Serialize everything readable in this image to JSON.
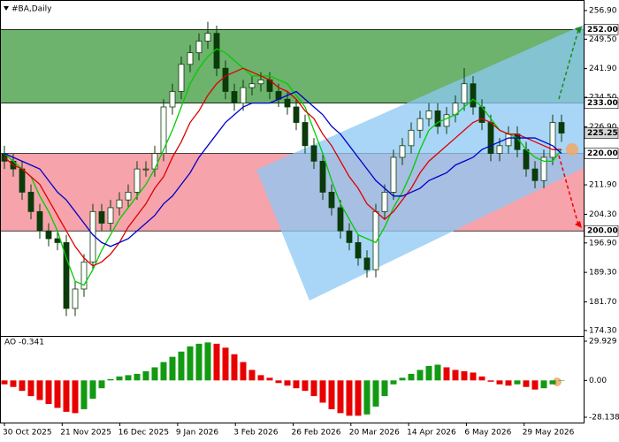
{
  "chart_data": [
    {
      "type": "candlestick",
      "title": "#BA,Daily",
      "x_labels": [
        "30 Oct 2025",
        "21 Nov 2025",
        "16 Dec 2025",
        "9 Jan 2026",
        "3 Feb 2026",
        "26 Feb 2026",
        "20 Mar 2026",
        "14 Apr 2026",
        "6 May 2026",
        "29 May 2026"
      ],
      "open": [
        220,
        218,
        216,
        210,
        205,
        200,
        198,
        197,
        180,
        185,
        192,
        205,
        202,
        206,
        208,
        210,
        216,
        216,
        220,
        232,
        236,
        243,
        246,
        249,
        251,
        242,
        236,
        233,
        237,
        238,
        239,
        236,
        234,
        232,
        228,
        222,
        218,
        210,
        206,
        200,
        197,
        193,
        190,
        205,
        210,
        219,
        222,
        226,
        229,
        231,
        227,
        230,
        233,
        238,
        232,
        228,
        220,
        222,
        225,
        221,
        216,
        213,
        219,
        228
      ],
      "high": [
        222,
        220,
        218,
        212,
        207,
        202,
        200,
        199,
        187,
        194,
        207,
        207,
        208,
        210,
        212,
        218,
        218,
        222,
        234,
        238,
        245,
        248,
        251,
        254,
        253,
        244,
        238,
        239,
        240,
        241,
        241,
        238,
        236,
        234,
        230,
        224,
        220,
        212,
        208,
        202,
        199,
        195,
        207,
        212,
        221,
        224,
        228,
        231,
        233,
        233,
        232,
        235,
        242,
        240,
        234,
        230,
        224,
        227,
        227,
        223,
        218,
        221,
        230,
        230
      ],
      "low": [
        216,
        214,
        208,
        203,
        198,
        196,
        195,
        178,
        178,
        183,
        190,
        200,
        200,
        204,
        206,
        208,
        214,
        214,
        218,
        230,
        234,
        241,
        244,
        247,
        240,
        234,
        231,
        231,
        235,
        236,
        234,
        232,
        230,
        226,
        220,
        216,
        208,
        204,
        198,
        195,
        191,
        188,
        188,
        203,
        208,
        217,
        220,
        224,
        227,
        225,
        225,
        228,
        231,
        230,
        226,
        218,
        218,
        220,
        219,
        214,
        211,
        211,
        217,
        223
      ],
      "close": [
        218,
        216,
        210,
        205,
        200,
        198,
        197,
        180,
        185,
        192,
        205,
        202,
        206,
        208,
        210,
        216,
        216,
        220,
        232,
        236,
        243,
        246,
        249,
        251,
        242,
        236,
        233,
        237,
        238,
        239,
        236,
        234,
        232,
        228,
        222,
        218,
        210,
        206,
        200,
        197,
        193,
        190,
        205,
        210,
        219,
        222,
        226,
        229,
        231,
        227,
        230,
        233,
        238,
        232,
        228,
        220,
        222,
        225,
        221,
        216,
        213,
        219,
        228,
        225.25
      ],
      "candle_color": "#0b3b0b",
      "series": [
        {
          "color": "#00cc00",
          "values": [
            220,
            218,
            216,
            214,
            209,
            205,
            200,
            193,
            187,
            186,
            190,
            195,
            199,
            203,
            206,
            209,
            212,
            216,
            221,
            226,
            232,
            238,
            242,
            245,
            247,
            246,
            244,
            242,
            240,
            240,
            240,
            239,
            238,
            235,
            232,
            226,
            220,
            213,
            207,
            203,
            199,
            198,
            197,
            201,
            206,
            210,
            215,
            221,
            226,
            228,
            229,
            230,
            232,
            234,
            232,
            229,
            226,
            225,
            224,
            221,
            219,
            218,
            218,
            221
          ]
        },
        {
          "color": "#dd0000",
          "values": [
            219,
            217,
            216,
            214,
            212,
            208,
            204,
            200,
            196,
            193,
            191,
            192,
            194,
            197,
            201,
            204,
            207,
            211,
            214,
            219,
            223,
            228,
            231,
            235,
            238,
            240,
            241,
            242,
            241,
            240,
            239,
            237,
            236,
            234,
            231,
            229,
            225,
            222,
            218,
            214,
            211,
            207,
            205,
            203,
            205,
            208,
            211,
            215,
            218,
            220,
            222,
            224,
            226,
            228,
            229,
            228,
            226,
            225,
            225,
            224,
            223,
            222,
            221,
            221
          ]
        },
        {
          "color": "#0000cc",
          "values": [
            220,
            219,
            218,
            217,
            216,
            213,
            210,
            208,
            205,
            202,
            199,
            197,
            196,
            197,
            198,
            200,
            202,
            204,
            207,
            209,
            212,
            215,
            219,
            222,
            225,
            228,
            230,
            232,
            233,
            233,
            233,
            234,
            235,
            236,
            234,
            232,
            230,
            227,
            225,
            222,
            219,
            216,
            213,
            211,
            209,
            209,
            210,
            211,
            213,
            214,
            215,
            217,
            218,
            219,
            221,
            222,
            223,
            224,
            224,
            224,
            224,
            223,
            222,
            220
          ]
        }
      ],
      "ylim": [
        172.9,
        258.7
      ],
      "yticks": [
        {
          "value": 256.9,
          "label": "256.90"
        },
        {
          "value": 249.5,
          "label": "249.50"
        },
        {
          "value": 241.9,
          "label": "241.90"
        },
        {
          "value": 234.5,
          "label": "234.50"
        },
        {
          "value": 226.9,
          "label": "226.90"
        },
        {
          "value": 219.5,
          "label": "219.50"
        },
        {
          "value": 211.9,
          "label": "211.90"
        },
        {
          "value": 204.3,
          "label": "204.30"
        },
        {
          "value": 196.9,
          "label": "196.90"
        },
        {
          "value": 189.3,
          "label": "189.30"
        },
        {
          "value": 181.7,
          "label": "181.70"
        },
        {
          "value": 174.3,
          "label": "174.30"
        }
      ],
      "levels": [
        {
          "value": 252,
          "label": "252.00"
        },
        {
          "value": 233,
          "label": "233.00"
        },
        {
          "value": 220,
          "label": "220.00"
        },
        {
          "value": 200,
          "label": "200.00"
        }
      ],
      "zone_colors": [
        "#6db26d",
        "#f7a3ab"
      ],
      "current_price": {
        "value": 225.25,
        "label": "225.25"
      }
    },
    {
      "type": "bar",
      "title": "AO -0.341",
      "values": [
        -3,
        -5,
        -8,
        -12,
        -15,
        -18,
        -21,
        -24,
        -25,
        -22,
        -14,
        -6,
        1,
        3,
        4,
        5,
        7,
        10,
        14,
        18,
        22,
        26,
        28,
        29,
        28,
        25,
        20,
        14,
        8,
        4,
        2,
        -2,
        -4,
        -6,
        -8,
        -12,
        -17,
        -22,
        -25,
        -27,
        -27,
        -26,
        -20,
        -12,
        -3,
        2,
        5,
        8,
        11,
        12,
        10,
        8,
        7,
        6,
        3,
        -1,
        -3,
        -4,
        -3,
        -5,
        -7,
        -6,
        -3,
        -0.341
      ],
      "up_color": "#139a13",
      "down_color": "#e80000",
      "ylim": [
        -32.2,
        33.3
      ],
      "yticks": [
        {
          "value": 29.929,
          "label": "29.929"
        },
        {
          "value": 0,
          "label": "0.00"
        },
        {
          "value": -28.138,
          "label": "-28.138"
        }
      ]
    }
  ]
}
